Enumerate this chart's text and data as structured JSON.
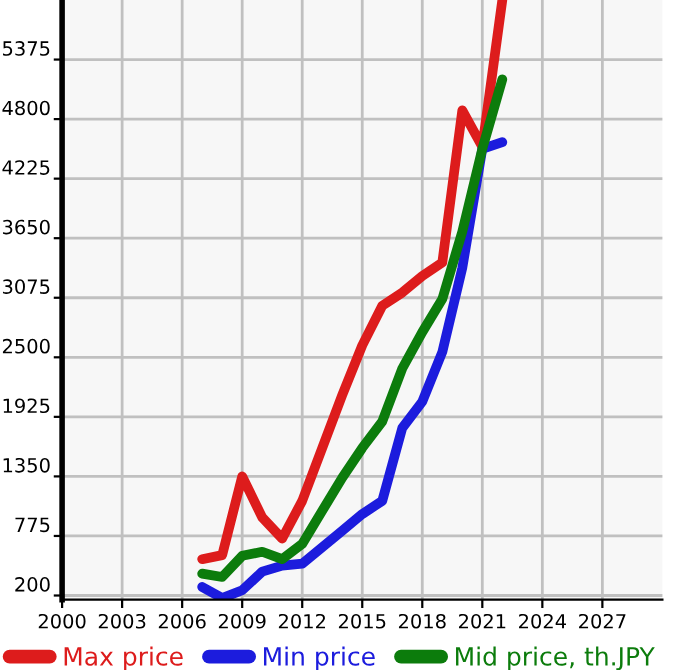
{
  "chart_data": {
    "type": "line",
    "x": [
      2007,
      2008,
      2009,
      2010,
      2011,
      2012,
      2013,
      2014,
      2015,
      2016,
      2017,
      2018,
      2019,
      2020,
      2021,
      2022
    ],
    "series": [
      {
        "name": "Max price",
        "color": "#dd1c1c",
        "values": [
          551,
          590,
          1350,
          954,
          750,
          1114,
          1625,
          2136,
          2615,
          2998,
          3125,
          3285,
          3415,
          4885,
          4533,
          5950
        ]
      },
      {
        "name": "Min price",
        "color": "#1c1cdd",
        "values": [
          283,
          175,
          251,
          430,
          488,
          507,
          666,
          826,
          986,
          1114,
          1817,
          2072,
          2551,
          3363,
          4513,
          4577
        ]
      },
      {
        "name": "Mid price, th.JPY",
        "color": "#0c7c0c",
        "values": [
          411,
          379,
          583,
          622,
          551,
          698,
          1018,
          1337,
          1625,
          1880,
          2392,
          2743,
          3062,
          3714,
          4513,
          5184
        ]
      }
    ],
    "xlim": [
      2000,
      2030
    ],
    "xticks": [
      2000,
      2003,
      2006,
      2009,
      2012,
      2015,
      2018,
      2021,
      2024,
      2027
    ],
    "ylim": [
      160,
      5950
    ],
    "yticks": [
      200,
      775,
      1350,
      1925,
      2500,
      3075,
      3650,
      4225,
      4800,
      5375
    ],
    "grid": true,
    "legend": "bottom",
    "marker": "none",
    "line_style": "solid"
  }
}
